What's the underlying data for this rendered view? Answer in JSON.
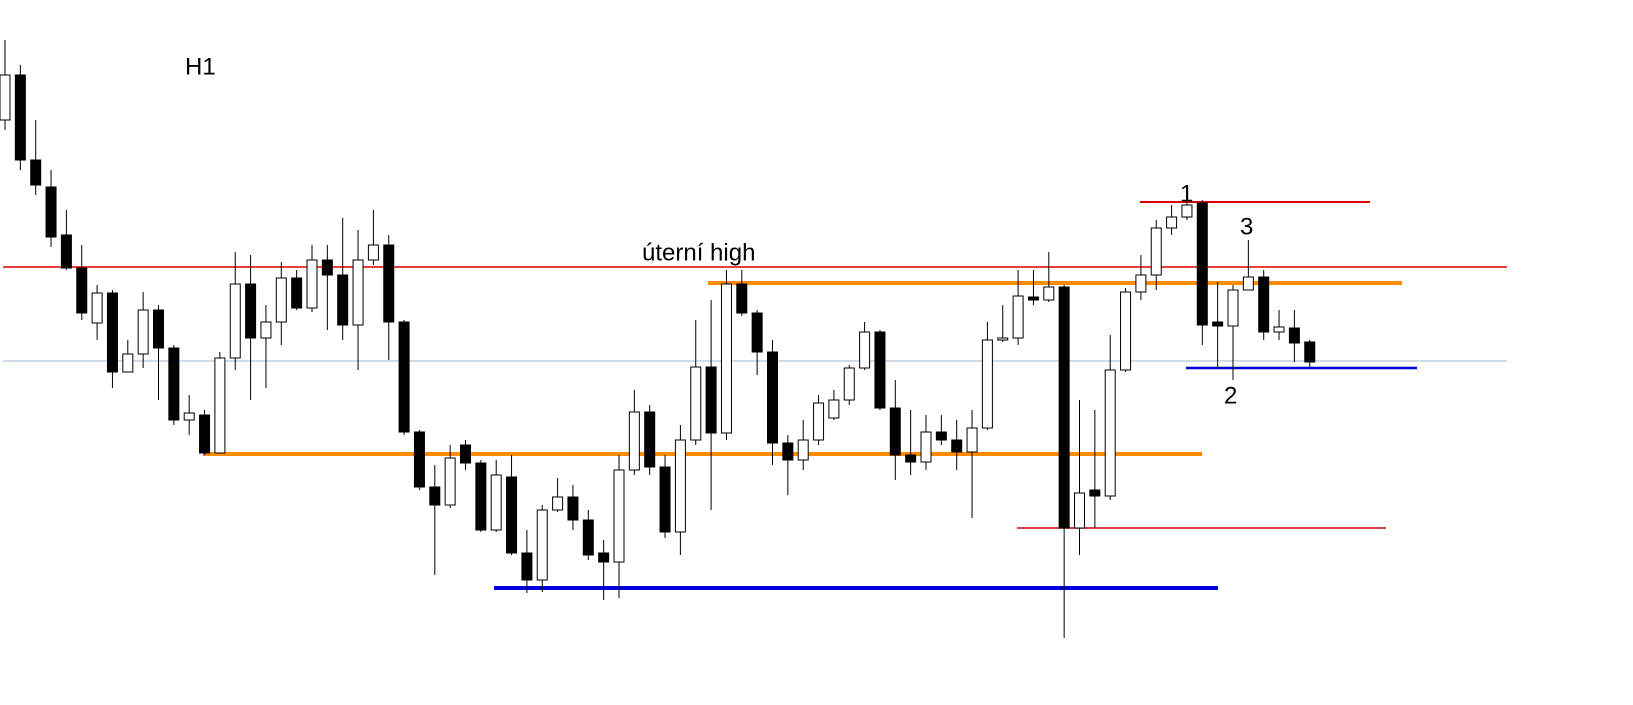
{
  "chart_data": {
    "type": "candlestick",
    "timeframe_label": "H1",
    "ylim": [
      295,
      1000
    ],
    "up_color": "#ffffff",
    "down_color": "#000000",
    "outline_color": "#000000",
    "open": [
      880,
      925,
      840,
      813,
      765,
      732,
      677,
      707,
      628,
      646,
      690,
      652,
      580,
      585,
      547,
      642,
      716,
      662,
      678,
      722,
      692,
      740,
      725,
      675,
      740,
      755,
      678,
      568,
      513,
      495,
      555,
      537,
      470,
      523,
      447,
      420,
      490,
      503,
      480,
      447,
      438,
      530,
      588,
      533,
      468,
      560,
      633,
      567,
      716,
      687,
      648,
      557,
      540,
      560,
      582,
      600,
      632,
      668,
      592,
      545,
      538,
      568,
      560,
      548,
      572,
      660,
      662,
      703,
      700,
      713,
      472,
      510,
      504,
      630,
      708,
      725,
      772,
      783,
      797,
      678,
      674,
      710,
      723,
      668,
      672,
      658
    ],
    "high": [
      960,
      935,
      880,
      830,
      790,
      755,
      715,
      710,
      660,
      708,
      695,
      655,
      605,
      590,
      648,
      748,
      745,
      695,
      738,
      730,
      755,
      755,
      782,
      770,
      790,
      765,
      680,
      570,
      535,
      555,
      560,
      540,
      540,
      545,
      470,
      495,
      522,
      515,
      490,
      460,
      545,
      610,
      595,
      545,
      575,
      680,
      700,
      730,
      730,
      690,
      660,
      565,
      580,
      605,
      610,
      635,
      678,
      670,
      620,
      590,
      585,
      585,
      580,
      590,
      678,
      695,
      730,
      730,
      748,
      715,
      600,
      590,
      665,
      712,
      745,
      780,
      795,
      815,
      800,
      718,
      715,
      760,
      730,
      690,
      690,
      660
    ],
    "low": [
      870,
      830,
      805,
      753,
      730,
      680,
      660,
      612,
      628,
      632,
      600,
      575,
      565,
      545,
      547,
      630,
      600,
      612,
      655,
      690,
      688,
      670,
      660,
      630,
      735,
      640,
      565,
      510,
      425,
      492,
      530,
      468,
      468,
      445,
      407,
      408,
      488,
      470,
      440,
      400,
      402,
      525,
      525,
      462,
      445,
      555,
      490,
      560,
      684,
      625,
      535,
      505,
      530,
      555,
      580,
      595,
      630,
      590,
      520,
      525,
      530,
      555,
      530,
      482,
      570,
      658,
      655,
      695,
      698,
      362,
      445,
      472,
      500,
      628,
      700,
      710,
      765,
      780,
      655,
      632,
      620,
      710,
      660,
      660,
      638,
      633
    ],
    "close": [
      925,
      840,
      815,
      763,
      732,
      687,
      707,
      628,
      646,
      690,
      652,
      580,
      587,
      547,
      642,
      716,
      662,
      678,
      722,
      692,
      740,
      725,
      675,
      740,
      755,
      678,
      568,
      513,
      495,
      542,
      537,
      470,
      525,
      447,
      420,
      490,
      503,
      480,
      445,
      438,
      530,
      588,
      533,
      468,
      560,
      633,
      567,
      716,
      687,
      648,
      557,
      540,
      560,
      597,
      600,
      632,
      668,
      592,
      545,
      538,
      568,
      560,
      548,
      572,
      660,
      662,
      704,
      700,
      713,
      472,
      507,
      504,
      630,
      708,
      725,
      772,
      783,
      795,
      675,
      674,
      710,
      723,
      668,
      673,
      657,
      638
    ],
    "levels": [
      {
        "value": 733,
        "color": "#e00000"
      },
      {
        "value": 639,
        "color": "#7f9fbf"
      },
      {
        "value": 546,
        "color": "#ff8c00"
      },
      {
        "value": 412,
        "color": "#0000dd"
      },
      {
        "value": 717,
        "color": "#ff8c00"
      },
      {
        "value": 798,
        "color": "#e00000"
      },
      {
        "value": 472,
        "color": "#c00000"
      },
      {
        "value": 632,
        "color": "#0000dd"
      }
    ],
    "annotations": [
      {
        "text": "úterní high"
      },
      {
        "text": "1"
      },
      {
        "text": "2"
      },
      {
        "text": "3"
      }
    ]
  }
}
